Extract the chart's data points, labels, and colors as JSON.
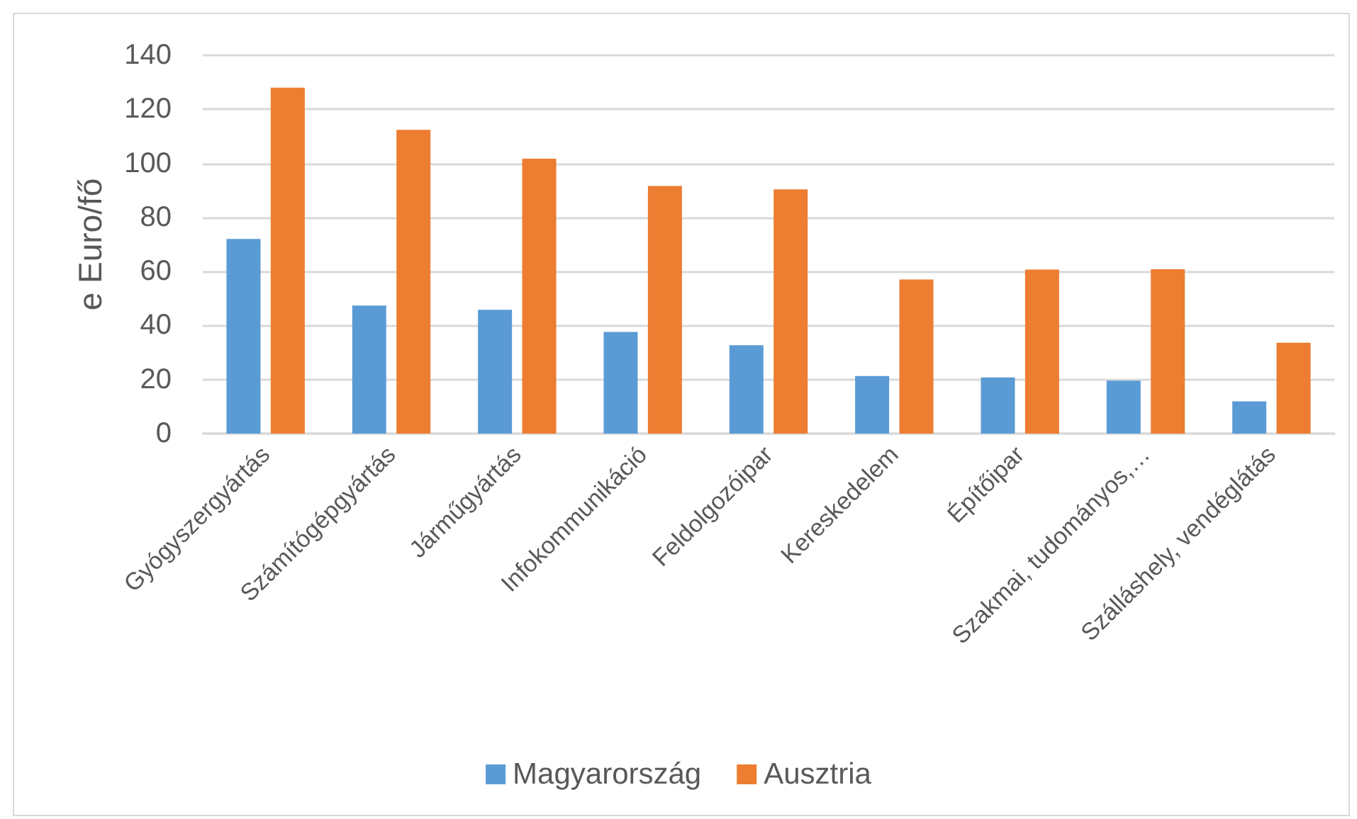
{
  "chart_data": {
    "type": "bar",
    "ylabel": "e Euro/fő",
    "categories": [
      "Gyógyszergyártás",
      "Számítógépgyártás",
      "Járműgyártás",
      "Infokommunikáció",
      "Feldolgozóipar",
      "Kereskedelem",
      "Építőipar",
      "Szakmai, tudományos,…",
      "Szálláshely, vendéglátás"
    ],
    "series": [
      {
        "name": "Magyarország",
        "color": "#5b9bd5",
        "values": [
          72,
          47.4,
          45.8,
          37.6,
          32.7,
          21.3,
          20.8,
          19.6,
          11.9
        ]
      },
      {
        "name": "Ausztria",
        "color": "#ed7d31",
        "values": [
          128,
          112.4,
          101.7,
          91.6,
          90.4,
          57,
          60.7,
          60.8,
          33.6
        ]
      }
    ],
    "ylim": [
      0,
      140
    ],
    "yticks": [
      0,
      20,
      40,
      60,
      80,
      100,
      120,
      140
    ],
    "grid": "y",
    "legend": "bottom"
  }
}
